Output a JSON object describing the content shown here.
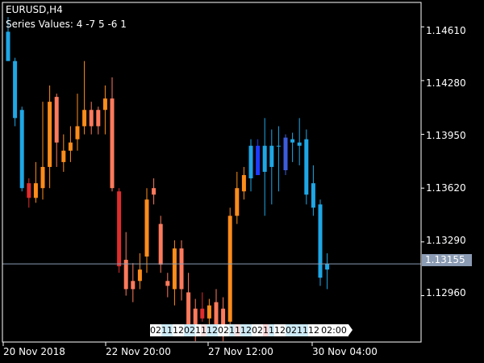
{
  "header": {
    "symbol_title": "EURUSD,H4",
    "series_values": "Series Values: 4 -7 5 -6 1"
  },
  "price_axis": {
    "labels": [
      "1.14610",
      "1.14280",
      "1.13950",
      "1.13620",
      "1.13290",
      "1.12960"
    ],
    "values": [
      1.1461,
      1.1428,
      1.1395,
      1.1362,
      1.1329,
      1.1296
    ],
    "current_price": "1.13155",
    "current_price_value": 1.13155
  },
  "time_axis": {
    "labels": [
      "20 Nov 2018",
      "22 Nov 20:00",
      "27 Nov 12:00",
      "30 Nov 04:00"
    ]
  },
  "time_strip": {
    "cells": [
      "02",
      "1",
      "1",
      "12",
      "02",
      "1",
      "1",
      "12",
      "02",
      "1",
      "1",
      "12",
      "02",
      "1",
      "1",
      "12",
      "02",
      "1",
      "1",
      "12",
      "02:00"
    ],
    "colors": [
      "#ffffff",
      "#cdebf7",
      "#cdebf7",
      "#ffffff",
      "#cdebf7",
      "#ffffff",
      "#fde0e0",
      "#cdebf7",
      "#ffffff",
      "#cdebf7",
      "#fde0e0",
      "#cdebf7",
      "#ffffff",
      "#ffd7d7",
      "#cdebf7",
      "#ffffff",
      "#cdebf7",
      "#cdebf7",
      "#cdebf7",
      "#ffffff",
      "#ffffff"
    ]
  },
  "colors": {
    "background": "#000000",
    "axis": "#ffffff",
    "current_price_line": "#8a9bb3",
    "current_price_box": "#8a9bb3"
  },
  "chart_data": {
    "type": "candlestick",
    "title": "EURUSD,H4",
    "ylim": [
      1.127,
      1.1475
    ],
    "candles": [
      {
        "o": 1.1458,
        "h": 1.1467,
        "l": 1.1442,
        "c": 1.144,
        "color": "#1ea7e6"
      },
      {
        "o": 1.144,
        "h": 1.1442,
        "l": 1.14,
        "c": 1.1405,
        "color": "#1ea7e6"
      },
      {
        "o": 1.141,
        "h": 1.1412,
        "l": 1.136,
        "c": 1.1362,
        "color": "#1ea7e6"
      },
      {
        "o": 1.1365,
        "h": 1.1368,
        "l": 1.135,
        "c": 1.1356,
        "color": "#e02c2c"
      },
      {
        "o": 1.1356,
        "h": 1.1378,
        "l": 1.1353,
        "c": 1.1365,
        "color": "#ff8c1a"
      },
      {
        "o": 1.1362,
        "h": 1.1415,
        "l": 1.1355,
        "c": 1.1375,
        "color": "#ff8c1a"
      },
      {
        "o": 1.1375,
        "h": 1.1425,
        "l": 1.1362,
        "c": 1.1415,
        "color": "#ff8c1a"
      },
      {
        "o": 1.139,
        "h": 1.142,
        "l": 1.1375,
        "c": 1.1418,
        "color": "#ff7a5c"
      },
      {
        "o": 1.1378,
        "h": 1.1395,
        "l": 1.1372,
        "c": 1.1385,
        "color": "#ff8c1a"
      },
      {
        "o": 1.1385,
        "h": 1.14,
        "l": 1.1378,
        "c": 1.139,
        "color": "#ff8c1a"
      },
      {
        "o": 1.1392,
        "h": 1.142,
        "l": 1.1385,
        "c": 1.14,
        "color": "#ff8c1a"
      },
      {
        "o": 1.14,
        "h": 1.144,
        "l": 1.1395,
        "c": 1.141,
        "color": "#ff8c1a"
      },
      {
        "o": 1.141,
        "h": 1.1415,
        "l": 1.1395,
        "c": 1.14,
        "color": "#ff7a5c"
      },
      {
        "o": 1.141,
        "h": 1.1412,
        "l": 1.1395,
        "c": 1.14,
        "color": "#ff7a5c"
      },
      {
        "o": 1.141,
        "h": 1.1425,
        "l": 1.1395,
        "c": 1.1417,
        "color": "#ff8c1a"
      },
      {
        "o": 1.1417,
        "h": 1.143,
        "l": 1.136,
        "c": 1.1362,
        "color": "#ff7a5c"
      },
      {
        "o": 1.136,
        "h": 1.1362,
        "l": 1.131,
        "c": 1.1314,
        "color": "#e02c2c"
      },
      {
        "o": 1.1318,
        "h": 1.1335,
        "l": 1.1296,
        "c": 1.13,
        "color": "#ff7a5c"
      },
      {
        "o": 1.13,
        "h": 1.1316,
        "l": 1.1292,
        "c": 1.1305,
        "color": "#ff7a5c"
      },
      {
        "o": 1.1305,
        "h": 1.1322,
        "l": 1.13,
        "c": 1.1312,
        "color": "#ff8c1a"
      },
      {
        "o": 1.132,
        "h": 1.1362,
        "l": 1.131,
        "c": 1.1355,
        "color": "#ff8c1a"
      },
      {
        "o": 1.1362,
        "h": 1.1368,
        "l": 1.1352,
        "c": 1.1358,
        "color": "#ff7a5c"
      },
      {
        "o": 1.134,
        "h": 1.1345,
        "l": 1.131,
        "c": 1.1315,
        "color": "#ff7a5c"
      },
      {
        "o": 1.1305,
        "h": 1.131,
        "l": 1.1295,
        "c": 1.1302,
        "color": "#ff7a5c"
      },
      {
        "o": 1.13,
        "h": 1.133,
        "l": 1.129,
        "c": 1.1325,
        "color": "#ff8c1a"
      },
      {
        "o": 1.1325,
        "h": 1.133,
        "l": 1.1293,
        "c": 1.13,
        "color": "#ff7a5c"
      },
      {
        "o": 1.1298,
        "h": 1.131,
        "l": 1.1272,
        "c": 1.1275,
        "color": "#ff7a5c"
      },
      {
        "o": 1.1278,
        "h": 1.1294,
        "l": 1.1268,
        "c": 1.1288,
        "color": "#ff7a5c"
      },
      {
        "o": 1.1288,
        "h": 1.1298,
        "l": 1.128,
        "c": 1.1282,
        "color": "#e02c2c"
      },
      {
        "o": 1.1282,
        "h": 1.1294,
        "l": 1.1275,
        "c": 1.129,
        "color": "#ff8c1a"
      },
      {
        "o": 1.1292,
        "h": 1.13,
        "l": 1.1275,
        "c": 1.1278,
        "color": "#ff7a5c"
      },
      {
        "o": 1.1278,
        "h": 1.1295,
        "l": 1.1268,
        "c": 1.1288,
        "color": "#ff7a5c"
      },
      {
        "o": 1.128,
        "h": 1.135,
        "l": 1.1272,
        "c": 1.1345,
        "color": "#ff8c1a"
      },
      {
        "o": 1.1345,
        "h": 1.1372,
        "l": 1.134,
        "c": 1.1362,
        "color": "#ff8c1a"
      },
      {
        "o": 1.136,
        "h": 1.1375,
        "l": 1.1355,
        "c": 1.137,
        "color": "#ff8c1a"
      },
      {
        "o": 1.1368,
        "h": 1.1392,
        "l": 1.136,
        "c": 1.1388,
        "color": "#1ea7e6"
      },
      {
        "o": 1.1388,
        "h": 1.1392,
        "l": 1.137,
        "c": 1.137,
        "color": "#1e3cff"
      },
      {
        "o": 1.1388,
        "h": 1.1405,
        "l": 1.1345,
        "c": 1.1372,
        "color": "#1ea7e6"
      },
      {
        "o": 1.1388,
        "h": 1.1398,
        "l": 1.1352,
        "c": 1.1375,
        "color": "#1ea7e6"
      },
      {
        "o": 1.1388,
        "h": 1.14,
        "l": 1.136,
        "c": 1.1388,
        "color": "#1ea7e6"
      },
      {
        "o": 1.1393,
        "h": 1.1395,
        "l": 1.137,
        "c": 1.1373,
        "color": "#3c5cdc"
      },
      {
        "o": 1.1392,
        "h": 1.1396,
        "l": 1.1378,
        "c": 1.139,
        "color": "#1ea7e6"
      },
      {
        "o": 1.139,
        "h": 1.1405,
        "l": 1.1376,
        "c": 1.1388,
        "color": "#1ea7e6"
      },
      {
        "o": 1.1392,
        "h": 1.1398,
        "l": 1.1352,
        "c": 1.1358,
        "color": "#1ea7e6"
      },
      {
        "o": 1.1365,
        "h": 1.1376,
        "l": 1.1345,
        "c": 1.135,
        "color": "#1ea7e6"
      },
      {
        "o": 1.1352,
        "h": 1.1355,
        "l": 1.1302,
        "c": 1.1307,
        "color": "#1ea7e6"
      },
      {
        "o": 1.1312,
        "h": 1.1322,
        "l": 1.13,
        "c": 1.13155,
        "color": "#1ea7e6"
      }
    ]
  }
}
